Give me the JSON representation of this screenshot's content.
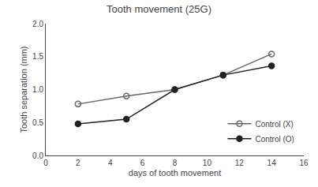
{
  "chart_data": {
    "type": "line",
    "title": "Tooth movement (25G)",
    "xlabel": "days of tooth movement",
    "ylabel": "Tooth separation (mm)",
    "xlim": [
      0,
      16
    ],
    "ylim": [
      0.0,
      2.0
    ],
    "xticks": [
      0,
      2,
      4,
      6,
      8,
      10,
      12,
      14,
      16
    ],
    "yticks": [
      {
        "value": 0.0,
        "label": "0.0"
      },
      0.5,
      {
        "value": 1.0,
        "label": "1.0"
      },
      1.5,
      {
        "value": 2.0,
        "label": "2.0"
      }
    ],
    "grid": false,
    "legend": "lower right",
    "series": [
      {
        "name": "Control (X)",
        "color": "#666666",
        "marker": "open circle",
        "line_style": "solid",
        "x": [
          2,
          5,
          8,
          11,
          14
        ],
        "values": [
          0.78,
          0.9,
          1.0,
          1.22,
          1.54
        ]
      },
      {
        "name": "Control (O)",
        "color": "#222222",
        "marker": "filled circle",
        "line_style": "solid",
        "x": [
          2,
          5,
          8,
          11,
          14
        ],
        "values": [
          0.48,
          0.55,
          1.0,
          1.22,
          1.36
        ]
      }
    ]
  }
}
